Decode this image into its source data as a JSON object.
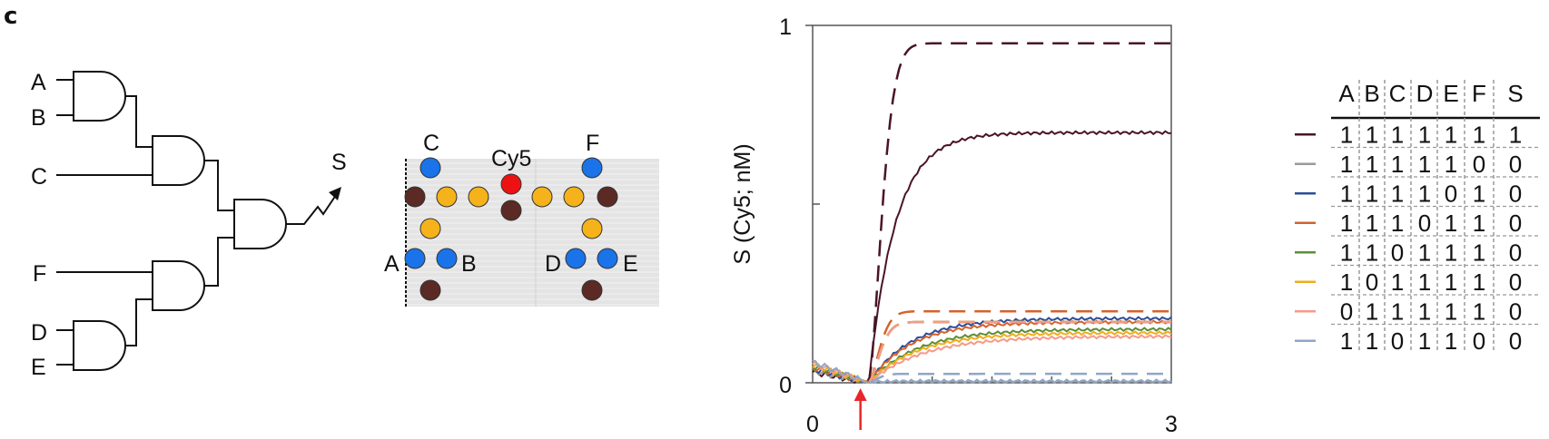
{
  "panel_label": "c",
  "circuit": {
    "inputs": {
      "a": "A",
      "b": "B",
      "c": "C",
      "d": "D",
      "e": "E",
      "f": "F"
    },
    "output": "S"
  },
  "origami": {
    "labels": {
      "c": "C",
      "cy5": "Cy5",
      "f": "F",
      "a": "A",
      "b": "B",
      "d": "D",
      "e": "E"
    },
    "colors": {
      "input": "#1a73e8",
      "reporter": "#ee1111",
      "gate": "#f5b21a",
      "anchor": "#5b2a24",
      "substrate": "#e3e3e3"
    }
  },
  "chart_data": {
    "type": "line",
    "ylabel": "S (Cy5; nM)",
    "xlim": [
      0,
      3
    ],
    "ylim": [
      0,
      1
    ],
    "xticks": [
      "0",
      "3"
    ],
    "yticks": [
      "0",
      "1"
    ],
    "arrow_x": 0.4,
    "arrow_color": "#e8262a",
    "series": [
      {
        "color": "#4a1426",
        "final": 0.7,
        "sim_final": 0.95,
        "rise": 0.22,
        "dash_rise": 0.14
      },
      {
        "color": "#9a9a9a",
        "final": 0.003,
        "sim_final": 0.0,
        "rise": 0.1,
        "dash_rise": 0.1
      },
      {
        "color": "#2b4e9a",
        "final": 0.18,
        "sim_final": 0.17,
        "rise": 0.35,
        "dash_rise": 0.12
      },
      {
        "color": "#d4632c",
        "final": 0.17,
        "sim_final": 0.2,
        "rise": 0.35,
        "dash_rise": 0.12
      },
      {
        "color": "#5d8e36",
        "final": 0.15,
        "sim_final": 0.17,
        "rise": 0.4,
        "dash_rise": 0.12
      },
      {
        "color": "#f0ad1c",
        "final": 0.14,
        "sim_final": 0.17,
        "rise": 0.4,
        "dash_rise": 0.12
      },
      {
        "color": "#f59a88",
        "final": 0.13,
        "sim_final": 0.17,
        "rise": 0.45,
        "dash_rise": 0.12
      },
      {
        "color": "#8fa6c6",
        "final": 0.005,
        "sim_final": 0.025,
        "rise": 0.1,
        "dash_rise": 0.1
      }
    ]
  },
  "truth_table": {
    "headers": [
      "A",
      "B",
      "C",
      "D",
      "E",
      "F",
      "S"
    ],
    "rows": [
      {
        "color": "#4a1426",
        "values": [
          "1",
          "1",
          "1",
          "1",
          "1",
          "1",
          "1"
        ]
      },
      {
        "color": "#9a9a9a",
        "values": [
          "1",
          "1",
          "1",
          "1",
          "1",
          "0",
          "0"
        ]
      },
      {
        "color": "#2b4e9a",
        "values": [
          "1",
          "1",
          "1",
          "1",
          "0",
          "1",
          "0"
        ]
      },
      {
        "color": "#d4632c",
        "values": [
          "1",
          "1",
          "1",
          "0",
          "1",
          "1",
          "0"
        ]
      },
      {
        "color": "#5d8e36",
        "values": [
          "1",
          "1",
          "0",
          "1",
          "1",
          "1",
          "0"
        ]
      },
      {
        "color": "#f0ad1c",
        "values": [
          "1",
          "0",
          "1",
          "1",
          "1",
          "1",
          "0"
        ]
      },
      {
        "color": "#f59a88",
        "values": [
          "0",
          "1",
          "1",
          "1",
          "1",
          "1",
          "0"
        ]
      },
      {
        "color": "#8fa6c6",
        "values": [
          "1",
          "1",
          "0",
          "1",
          "1",
          "0",
          "0"
        ]
      }
    ]
  }
}
